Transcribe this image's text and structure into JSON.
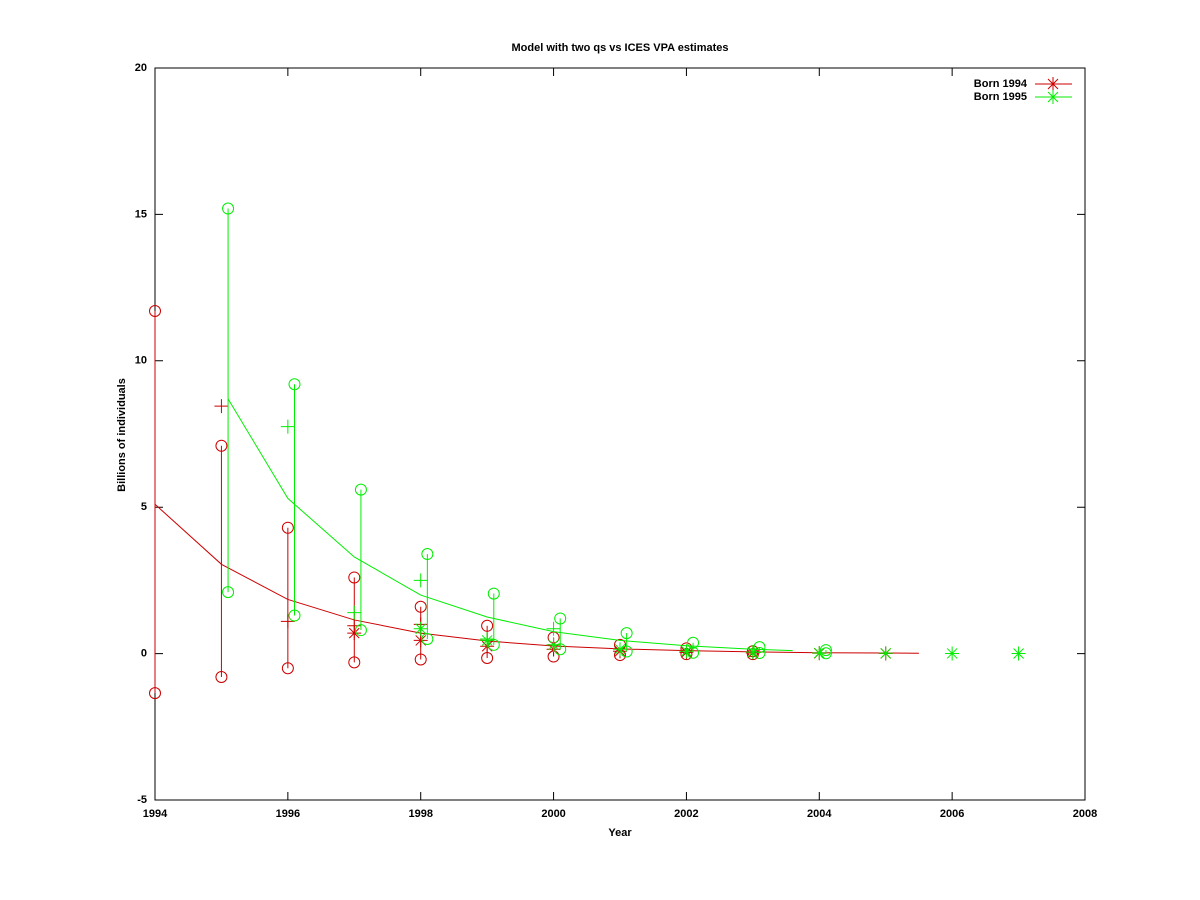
{
  "chart_data": {
    "type": "errorline",
    "title": "Model with two qs vs ICES VPA estimates",
    "xlabel": "Year",
    "ylabel": "Billions of individuals",
    "xlim": [
      1994,
      2008
    ],
    "xticks": [
      1994,
      1996,
      1998,
      2000,
      2002,
      2004,
      2006,
      2008
    ],
    "ylim": [
      -5,
      20
    ],
    "yticks": [
      -5,
      0,
      5,
      10,
      15,
      20
    ],
    "grid": false,
    "legend": "top-right",
    "series": [
      {
        "name": "Born 1994",
        "color": "#cc0000",
        "x": [
          1994,
          1995,
          1996,
          1997,
          1998,
          1999,
          2000,
          2001,
          2002,
          2003,
          2004,
          2005,
          2005.5
        ],
        "values": [
          5.1,
          3.05,
          1.85,
          1.15,
          0.7,
          0.43,
          0.26,
          0.16,
          0.1,
          0.06,
          0.03,
          0.02,
          0.01
        ],
        "bar_x": [
          1994,
          1995,
          1996,
          1997,
          1998,
          1999,
          2000,
          2001,
          2002,
          2003
        ],
        "bar_low": [
          -1.35,
          -0.8,
          -0.5,
          -0.3,
          -0.2,
          -0.15,
          -0.1,
          -0.05,
          -0.02,
          -0.02
        ],
        "bar_high": [
          11.7,
          7.1,
          4.3,
          2.6,
          1.6,
          0.95,
          0.55,
          0.3,
          0.18,
          0.08
        ],
        "plus_x": [
          1995,
          1996,
          1997,
          1998,
          1999,
          2000
        ],
        "plus_values": [
          8.45,
          1.1,
          0.95,
          1.0,
          0.45,
          0.3
        ],
        "star_x": [
          1997,
          1998,
          1999,
          2000,
          2001,
          2002,
          2003,
          2004,
          2005
        ],
        "star_values": [
          0.7,
          0.45,
          0.25,
          0.15,
          0.08,
          0.04,
          0.02,
          0.01,
          0.005
        ]
      },
      {
        "name": "Born 1995",
        "color": "#00ee00",
        "x": [
          1995.1,
          1996,
          1997,
          1998,
          1999,
          2000,
          2001,
          2002,
          2003,
          2003.6
        ],
        "values": [
          8.7,
          5.3,
          3.3,
          2.0,
          1.25,
          0.75,
          0.45,
          0.27,
          0.15,
          0.1
        ],
        "bar_x": [
          1995.1,
          1996.1,
          1997.1,
          1998.1,
          1999.1,
          2000.1,
          2001.1,
          2002.1,
          2003.1,
          2004.1
        ],
        "bar_low": [
          2.1,
          1.3,
          0.8,
          0.5,
          0.3,
          0.15,
          0.07,
          0.03,
          0.02,
          0.01
        ],
        "bar_high": [
          15.2,
          9.2,
          5.6,
          3.4,
          2.05,
          1.2,
          0.7,
          0.37,
          0.22,
          0.12
        ],
        "plus_x": [
          1996,
          1997,
          1998,
          1999,
          2000
        ],
        "plus_values": [
          7.75,
          1.4,
          2.5,
          0.5,
          0.85
        ],
        "star_x": [
          1998,
          1999,
          2000,
          2001,
          2002,
          2003,
          2004,
          2005,
          2006,
          2007
        ],
        "star_values": [
          0.85,
          0.45,
          0.3,
          0.15,
          0.08,
          0.05,
          0.02,
          0.01,
          0.005,
          0.003
        ]
      }
    ]
  }
}
